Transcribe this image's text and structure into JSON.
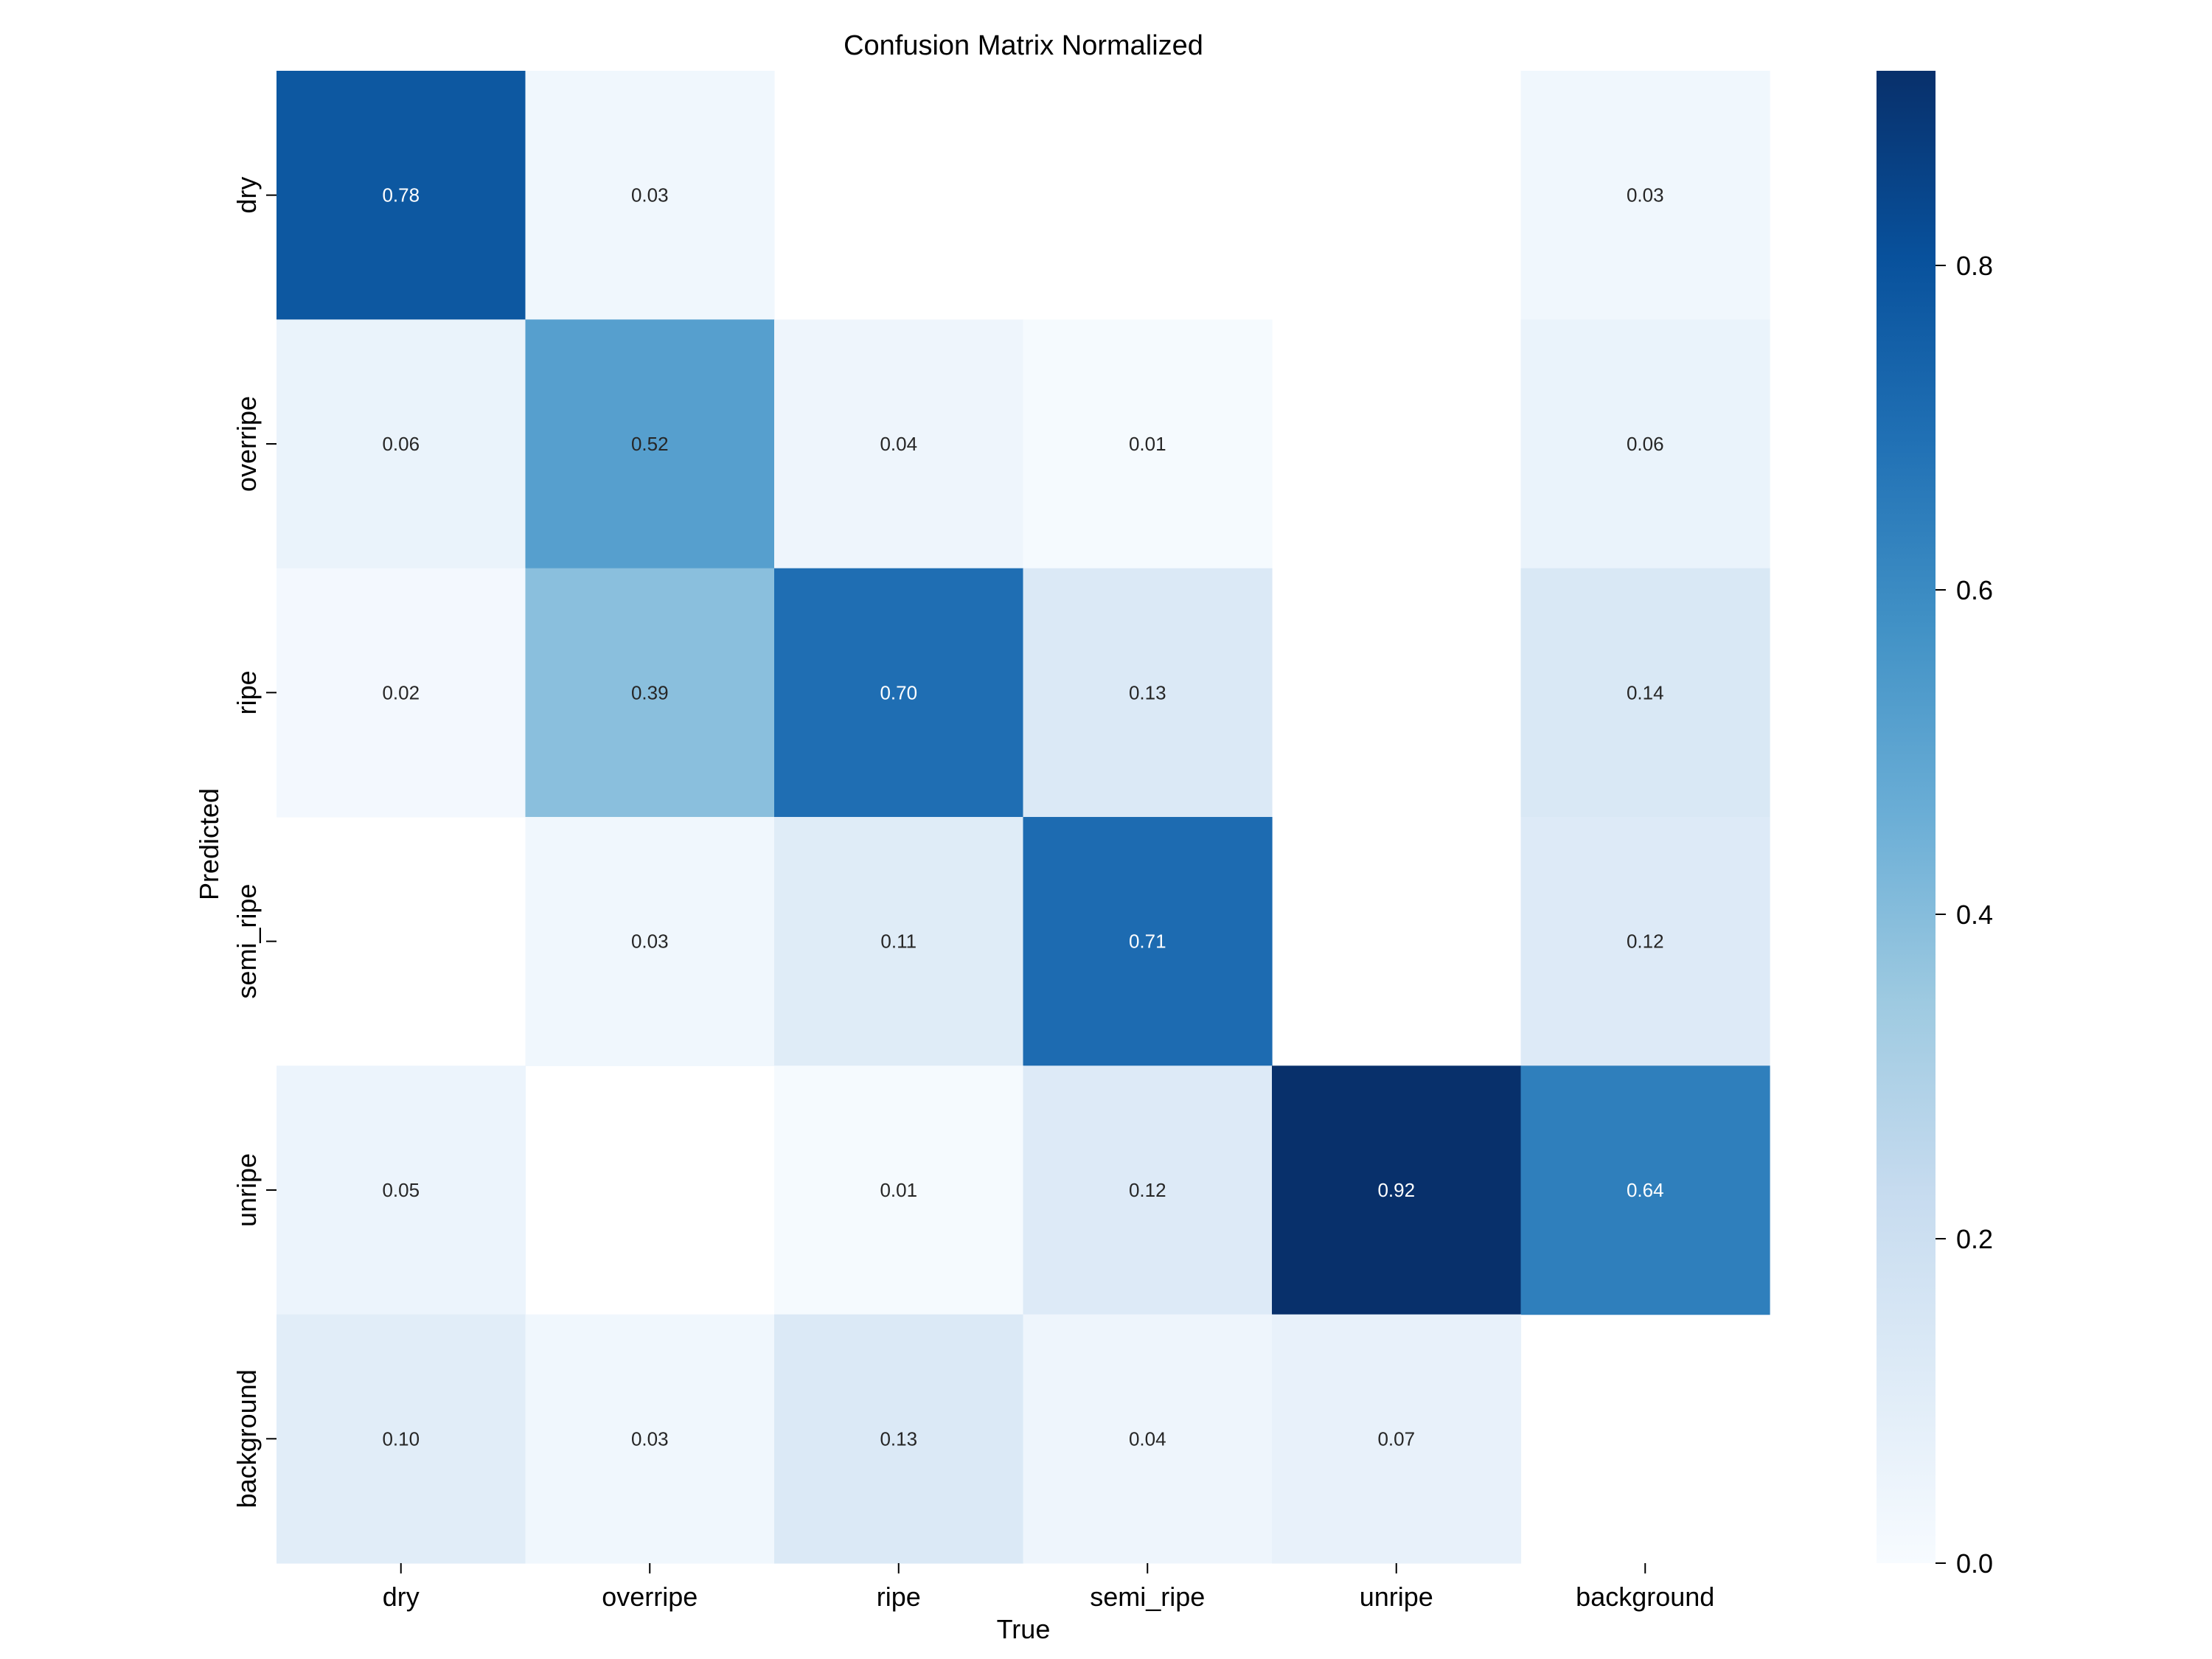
{
  "chart_data": {
    "type": "heatmap",
    "title": "Confusion Matrix Normalized",
    "xlabel": "True",
    "ylabel": "Predicted",
    "x_categories": [
      "dry",
      "overripe",
      "ripe",
      "semi_ripe",
      "unripe",
      "background"
    ],
    "y_categories": [
      "dry",
      "overripe",
      "ripe",
      "semi_ripe",
      "unripe",
      "background"
    ],
    "values": [
      [
        0.78,
        0.03,
        null,
        null,
        null,
        0.03
      ],
      [
        0.06,
        0.52,
        0.04,
        0.01,
        null,
        0.06
      ],
      [
        0.02,
        0.39,
        0.7,
        0.13,
        null,
        0.14
      ],
      [
        null,
        0.03,
        0.11,
        0.71,
        null,
        0.12
      ],
      [
        0.05,
        null,
        0.01,
        0.12,
        0.92,
        0.64
      ],
      [
        0.1,
        0.03,
        0.13,
        0.04,
        0.07,
        null
      ]
    ],
    "colorbar": {
      "min": 0.0,
      "max": 0.92,
      "ticks": [
        0.0,
        0.2,
        0.4,
        0.6,
        0.8
      ],
      "tick_labels": [
        "0.0",
        "0.2",
        "0.4",
        "0.6",
        "0.8"
      ],
      "colormap": "Blues"
    },
    "value_format": "2-decimal"
  }
}
